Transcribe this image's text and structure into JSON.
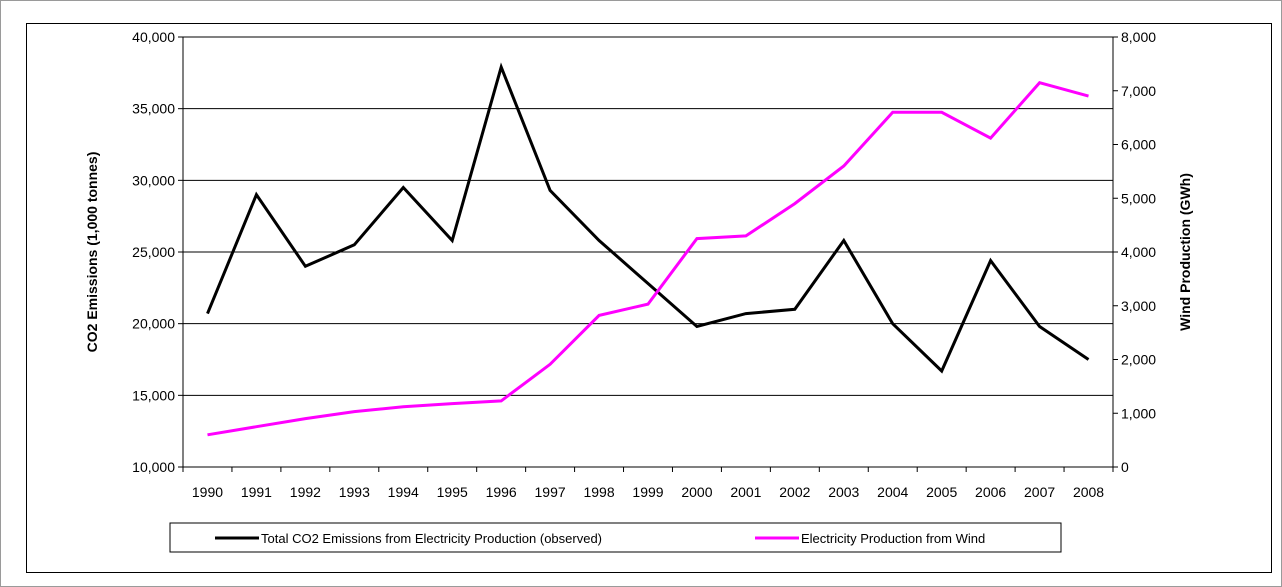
{
  "chart_data": {
    "type": "line",
    "categories": [
      "1990",
      "1991",
      "1992",
      "1993",
      "1994",
      "1995",
      "1996",
      "1997",
      "1998",
      "1999",
      "2000",
      "2001",
      "2002",
      "2003",
      "2004",
      "2005",
      "2006",
      "2007",
      "2008"
    ],
    "series": [
      {
        "name": "Total CO2 Emissions from Electricity Production (observed)",
        "axis": "left",
        "color": "#000000",
        "values": [
          20700,
          29000,
          24000,
          25500,
          29500,
          25800,
          37900,
          29300,
          25800,
          22800,
          19800,
          20700,
          21000,
          25800,
          20000,
          16700,
          24400,
          19800,
          17500
        ]
      },
      {
        "name": "Electricity Production from Wind",
        "axis": "right",
        "color": "#ff00ff",
        "values": [
          600,
          750,
          900,
          1030,
          1120,
          1180,
          1230,
          1910,
          2820,
          3030,
          4250,
          4300,
          4900,
          5600,
          6600,
          6600,
          6120,
          7150,
          6900
        ]
      }
    ],
    "ylabel": "CO2 Emissions (1,000 tonnes)",
    "ylabel_right": "Wind Production (GWh)",
    "ylim": [
      10000,
      40000
    ],
    "ylim_right": [
      0,
      8000
    ],
    "yticks": [
      "10,000",
      "15,000",
      "20,000",
      "25,000",
      "30,000",
      "35,000",
      "40,000"
    ],
    "yticks_right": [
      "0",
      "1,000",
      "2,000",
      "3,000",
      "4,000",
      "5,000",
      "6,000",
      "7,000",
      "8,000"
    ],
    "grid": "horizontal",
    "legend_position": "bottom"
  }
}
